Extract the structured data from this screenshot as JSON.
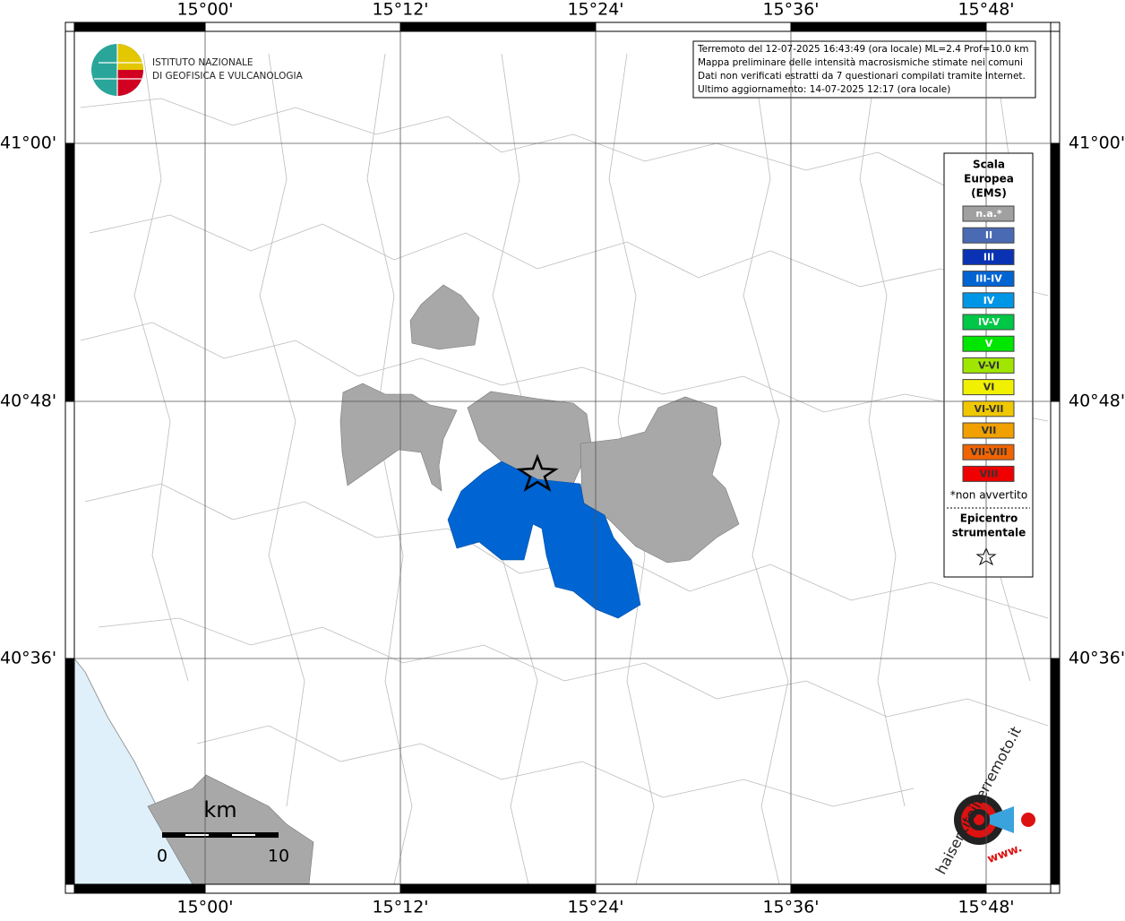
{
  "map": {
    "lon_labels": [
      "15°00'",
      "15°12'",
      "15°24'",
      "15°36'",
      "15°48'"
    ],
    "lat_labels": [
      "41°00'",
      "40°48'",
      "40°36'"
    ],
    "institute": [
      "ISTITUTO NAZIONALE",
      "DI GEOFISICA E VULCANOLOGIA"
    ],
    "info_lines": [
      "Terremoto del 12-07-2025 16:43:49 (ora locale) ML=2.4 Prof=10.0 km",
      "Mappa preliminare delle intensità macrosismiche stimate nei comuni",
      "Dati non verificati estratti da 7 questionari compilati tramite Internet.",
      "Ultimo aggiornamento: 14-07-2025 12:17 (ora locale)"
    ],
    "legend": {
      "title": [
        "Scala",
        "Europea",
        "(EMS)"
      ],
      "items": [
        {
          "label": "n.a.*",
          "color": "#a0a0a0"
        },
        {
          "label": "II",
          "color": "#4a6ab4"
        },
        {
          "label": "III",
          "color": "#0a32b4"
        },
        {
          "label": "III-IV",
          "color": "#0064d2"
        },
        {
          "label": "IV",
          "color": "#0096e6"
        },
        {
          "label": "IV-V",
          "color": "#00c846"
        },
        {
          "label": "V",
          "color": "#00e600"
        },
        {
          "label": "V-VI",
          "color": "#a0e600"
        },
        {
          "label": "VI",
          "color": "#f0f000"
        },
        {
          "label": "VI-VII",
          "color": "#f0c800"
        },
        {
          "label": "VII",
          "color": "#f0a000"
        },
        {
          "label": "VII-VIII",
          "color": "#f06400"
        },
        {
          "label": "VIII",
          "color": "#f00000"
        }
      ],
      "note": "*non avvertito",
      "epicenter": [
        "Epicentro",
        "strumentale"
      ]
    },
    "scalebar": {
      "unit": "km",
      "ticks": [
        "0",
        "10"
      ]
    },
    "site_logo": {
      "text": "haisentitoilterremoto.it",
      "prefix": "www."
    }
  }
}
